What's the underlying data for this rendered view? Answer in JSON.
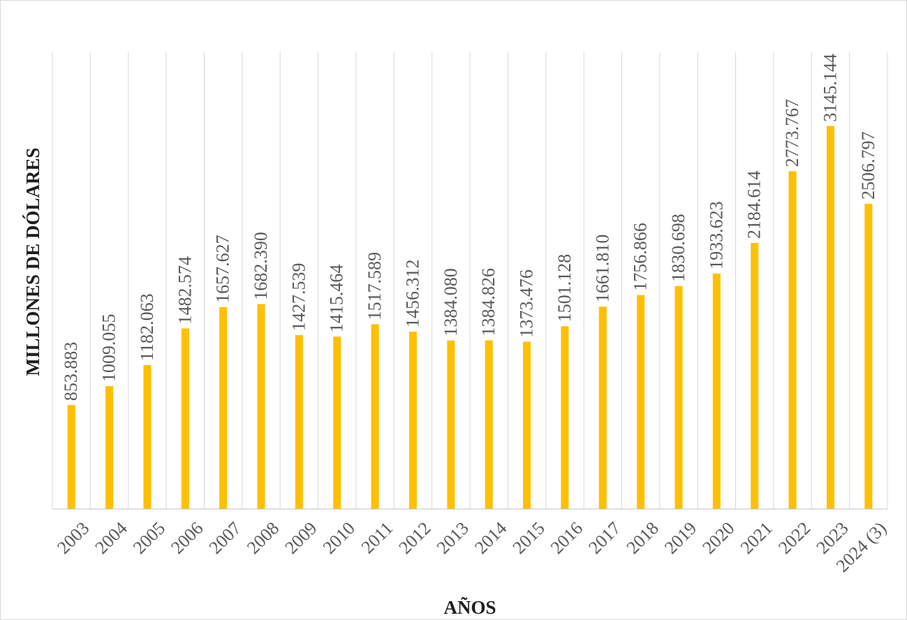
{
  "chart_data": {
    "type": "bar",
    "title": "",
    "xlabel": "AÑOS",
    "ylabel": "MILLONES DE DÓLARES",
    "categories": [
      "2003",
      "2004",
      "2005",
      "2006",
      "2007",
      "2008",
      "2009",
      "2010",
      "2011",
      "2012",
      "2013",
      "2014",
      "2015",
      "2016",
      "2017",
      "2018",
      "2019",
      "2020",
      "2021",
      "2022",
      "2023",
      "2024 (3)"
    ],
    "values": [
      853.883,
      1009.055,
      1182.063,
      1482.574,
      1657.627,
      1682.39,
      1427.539,
      1415.464,
      1517.589,
      1456.312,
      1384.08,
      1384.826,
      1373.476,
      1501.128,
      1661.81,
      1756.866,
      1830.698,
      1933.623,
      2184.614,
      2773.767,
      3145.144,
      2506.797
    ],
    "value_labels": [
      "853.883",
      "1009.055",
      "1182.063",
      "1482.574",
      "1657.627",
      "1682.390",
      "1427.539",
      "1415.464",
      "1517.589",
      "1456.312",
      "1384.080",
      "1384.826",
      "1373.476",
      "1501.128",
      "1661.810",
      "1756.866",
      "1830.698",
      "1933.623",
      "2184.614",
      "2773.767",
      "3145.144",
      "2506.797"
    ],
    "ylim": [
      0,
      3750
    ],
    "grid": "vertical",
    "legend": "none",
    "colors": {
      "bar": "#FFC000",
      "grid": "#d9d9d9",
      "axis": "#bfbfbf",
      "text": "#595959",
      "title": "#1f1f1f"
    }
  }
}
